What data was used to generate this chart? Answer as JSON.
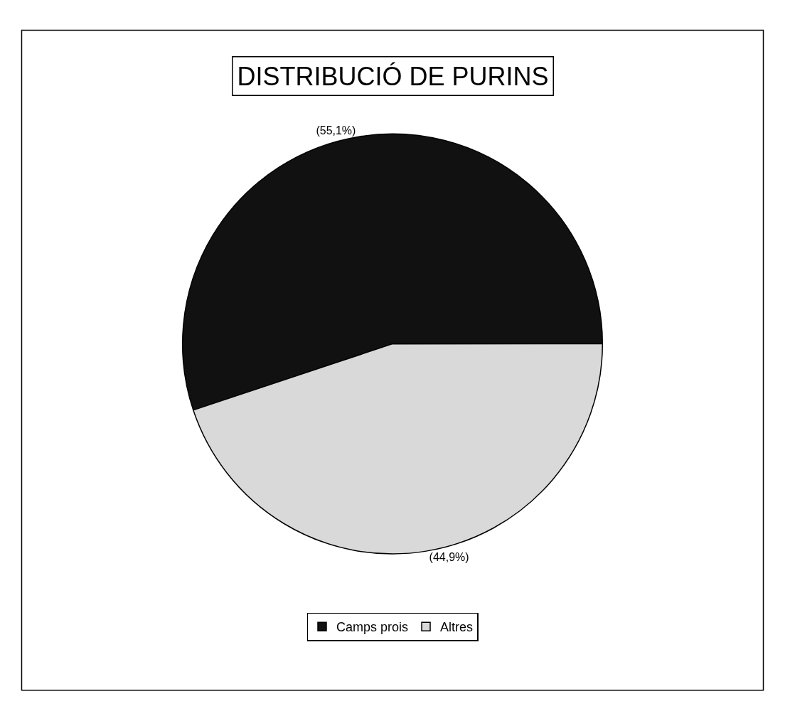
{
  "chart_data": {
    "type": "pie",
    "title": "DISTRIBUCIÓ DE PURINS",
    "categories": [
      "Camps prois",
      "Altres"
    ],
    "values": [
      55.1,
      44.9
    ],
    "value_labels": [
      "(55,1%)",
      "(44,9%)"
    ],
    "colors": [
      "#111111",
      "#d9d9d9"
    ],
    "legend": "bottom"
  }
}
